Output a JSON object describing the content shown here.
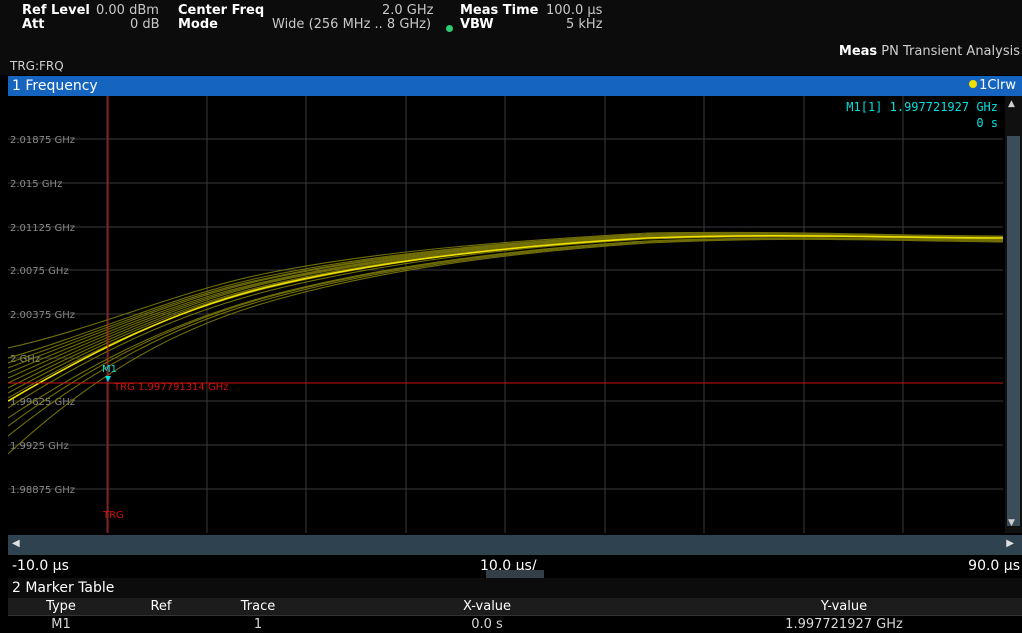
{
  "header": {
    "ref_level_label": "Ref Level",
    "ref_level_value": "0.00 dBm",
    "att_label": "Att",
    "att_value": "0 dB",
    "center_freq_label": "Center Freq",
    "center_freq_value": "2.0 GHz",
    "mode_label": "Mode",
    "mode_value": "Wide (256 MHz .. 8 GHz)",
    "meas_time_label": "Meas Time",
    "meas_time_value": "100.0 µs",
    "vbw_label": "VBW",
    "vbw_value": "5 kHz",
    "vbw_dot_color": "#2ecc71",
    "meas_label": "Meas",
    "meas_value": "PN Transient Analysis",
    "trigger_status": "TRG:FRQ"
  },
  "window1": {
    "title": "1 Frequency",
    "trace_indicator": "1Clrw",
    "bar_color": "#1565c0",
    "marker_readout": "M1[1] 1.997721927 GHz",
    "marker_time": "0 s"
  },
  "plot": {
    "y_labels": [
      "2.01875 GHz",
      "2.015 GHz",
      "2.01125 GHz",
      "2.0075 GHz",
      "2.00375 GHz",
      "2 GHz",
      "1.99625 GHz",
      "1.9925 GHz",
      "1.98875 GHz"
    ],
    "marker_name": "M1",
    "trigger_level_text": "TRG 1.997791314 GHz",
    "trigger_label": "TRG",
    "trace_color": "#f0e000",
    "trigger_color": "#d01010",
    "marker_color": "#00e0e0"
  },
  "xaxis": {
    "start": "-10.0 µs",
    "per_div": "10.0 µs/",
    "stop": "90.0 µs"
  },
  "marker_table": {
    "title": "2 Marker Table",
    "columns": [
      "Type",
      "Ref",
      "Trace",
      "X-value",
      "Y-value"
    ],
    "rows": [
      {
        "type": "M1",
        "ref": "",
        "trace": "1",
        "x": "0.0 s",
        "y": "1.997721927 GHz"
      }
    ]
  }
}
